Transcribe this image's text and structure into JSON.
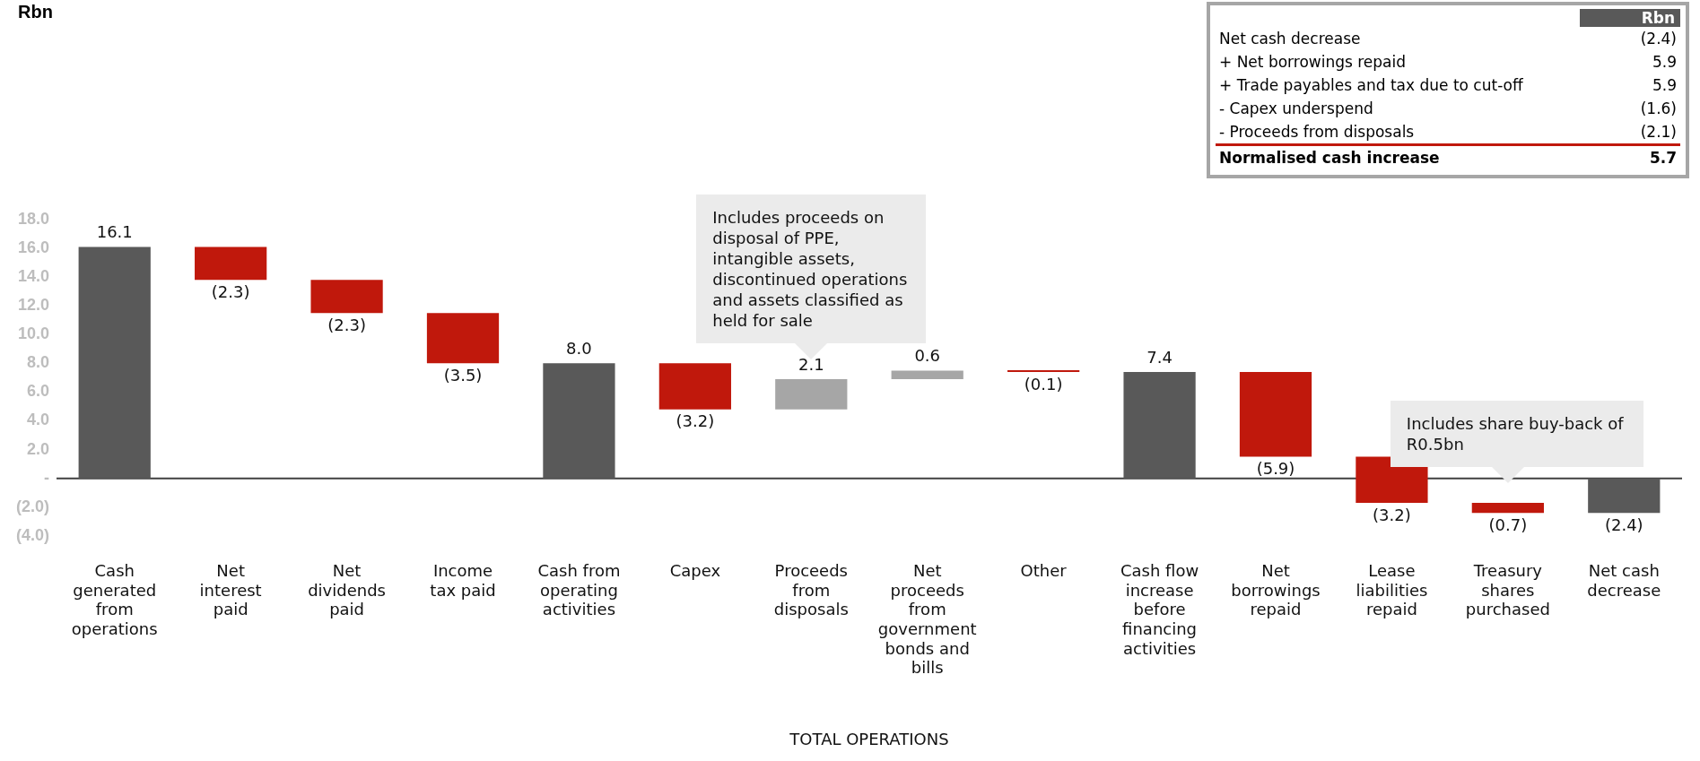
{
  "chart_data": [
    {
      "type": "bar",
      "title": "Rbn",
      "xlabel": "TOTAL OPERATIONS",
      "categories": [
        "Cash generated from operations",
        "Net interest paid",
        "Net dividends paid",
        "Income tax paid",
        "Cash from operating activities",
        "Capex",
        "Proceeds from disposals",
        "Net proceeds from government bonds and bills",
        "Other",
        "Cash flow increase before financing activities",
        "Net borrowings repaid",
        "Lease liabilities repaid",
        "Treasury shares purchased",
        "Net cash decrease"
      ],
      "values": [
        16.1,
        -2.3,
        -2.3,
        -3.5,
        8.0,
        -3.2,
        2.1,
        0.6,
        -0.1,
        7.4,
        -5.9,
        -3.2,
        -0.7,
        -2.4
      ],
      "base": [
        0,
        16.1,
        13.8,
        11.5,
        0,
        8.0,
        4.8,
        6.9,
        7.5,
        0,
        7.4,
        1.5,
        -1.7,
        0
      ],
      "colors": [
        "#595959",
        "#c0180c",
        "#c0180c",
        "#c0180c",
        "#595959",
        "#c0180c",
        "#a6a6a6",
        "#a6a6a6",
        "#c0180c",
        "#595959",
        "#c0180c",
        "#c0180c",
        "#c0180c",
        "#595959"
      ],
      "value_labels": [
        "16.1",
        "(2.3)",
        "(2.3)",
        "(3.5)",
        "8.0",
        "(3.2)",
        "2.1",
        "0.6",
        "(0.1)",
        "7.4",
        "(5.9)",
        "(3.2)",
        "(0.7)",
        "(2.4)"
      ],
      "ylim": [
        -4,
        18
      ],
      "yticks": [
        {
          "value": -4,
          "label": "(4.0)"
        },
        {
          "value": -2,
          "label": "(2.0)"
        },
        {
          "value": 0,
          "label": "-"
        },
        {
          "value": 2,
          "label": "2.0"
        },
        {
          "value": 4,
          "label": "4.0"
        },
        {
          "value": 6,
          "label": "6.0"
        },
        {
          "value": 8,
          "label": "8.0"
        },
        {
          "value": 10,
          "label": "10.0"
        },
        {
          "value": 12,
          "label": "12.0"
        },
        {
          "value": 14,
          "label": "14.0"
        },
        {
          "value": 16,
          "label": "16.0"
        },
        {
          "value": 18,
          "label": "18.0"
        }
      ],
      "ref_lines": [
        {
          "axis": "y",
          "value": 0,
          "color": "#404040"
        }
      ],
      "annotations": [
        {
          "text": "Includes proceeds on disposal of PPE, intangible assets, discontinued operations and assets classified as held for sale",
          "x": "Proceeds from disposals",
          "y": 6.9
        },
        {
          "text": "Includes share buy-back of R0.5bn",
          "x": "Treasury shares purchased",
          "y": -1.7
        }
      ],
      "grid": false,
      "legend": false
    },
    {
      "type": "other",
      "title": "Rbn",
      "annotations": [
        "Net cash decrease",
        "(2.4)",
        "+ Net borrowings repaid",
        "5.9",
        "+ Trade payables and tax due to cut-off",
        "5.9",
        "- Capex underspend",
        "(1.6)",
        "- Proceeds from disposals",
        "(2.1)",
        "Normalised cash increase",
        "5.7"
      ]
    }
  ]
}
